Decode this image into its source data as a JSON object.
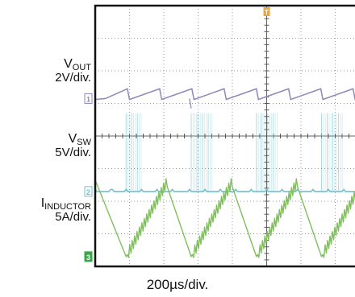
{
  "chart_data": {
    "type": "line",
    "xlabel": "200µs/div.",
    "grid": true,
    "horizontal_divisions": 10,
    "vertical_divisions": 8,
    "trigger_marker": "T",
    "series": [
      {
        "name": "VOUT",
        "marker": "1",
        "color": "#8f86bd",
        "scale_label": "2V/div.",
        "description": "Output voltage ripple: sawtooth repeating every ~0.94 div",
        "x_div": [
          0,
          0.3,
          0.94,
          1.0,
          1.88,
          1.94,
          2.82,
          2.88,
          3.76,
          3.82,
          4.7,
          4.76,
          5.64,
          5.7,
          6.58,
          6.64,
          7.52,
          7.58,
          8.46,
          8.52,
          9.4,
          9.46,
          10
        ],
        "y_div": [
          5.12,
          5.15,
          5.45,
          5.12,
          5.45,
          5.12,
          5.45,
          5.12,
          5.45,
          5.12,
          5.45,
          5.12,
          5.45,
          5.12,
          5.45,
          5.12,
          5.45,
          5.12,
          5.45,
          5.12,
          5.45,
          5.12,
          5.25
        ]
      },
      {
        "name": "VSW",
        "marker": "2",
        "color": "#6fc2d0",
        "scale_label": "5V/div.",
        "description": "Switch node voltage: bursts of pulses (about 2.4 div high) while the inductor current ramps up",
        "burst_start_div": [
          0.9,
          2.8,
          4.7,
          6.6,
          8.5
        ],
        "burst_end_div": [
          1.35,
          3.45,
          5.35,
          7.25,
          9.15
        ],
        "pulse_high_div": 2.4,
        "baseline_div": 2.3
      },
      {
        "name": "IINDUCTOR",
        "marker": "3",
        "color": "#7fbf5c",
        "scale_label": "5A/div.",
        "description": "Inductor current: ramps up with ripple, then falls sharply back to zero each burst",
        "x_div": [
          0,
          0.9,
          2.1,
          2.8,
          4.0,
          4.7,
          5.9,
          6.6,
          7.8,
          8.5,
          9.7,
          10
        ],
        "y_div": [
          2.65,
          0.3,
          2.6,
          0.3,
          2.6,
          0.3,
          2.6,
          0.3,
          2.6,
          0.3,
          2.6,
          1.7
        ]
      }
    ]
  },
  "labels": {
    "vout_name": "V",
    "vout_sub": "OUT",
    "vout_scale": "2V/div.",
    "vsw_name": "V",
    "vsw_sub": "SW",
    "vsw_scale": "5V/div.",
    "ind_name": "I",
    "ind_sub": "INDUCTOR",
    "ind_scale": "5A/div."
  }
}
